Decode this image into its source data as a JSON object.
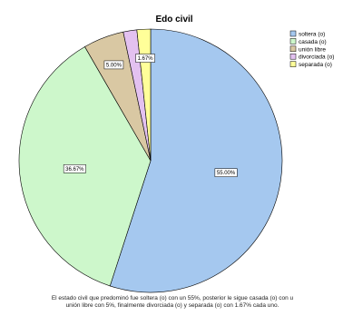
{
  "chart_data": {
    "type": "pie",
    "title": "Edo civil",
    "categories": [
      "soltera (o)",
      "casada (o)",
      "unión libre",
      "divorciada (o)",
      "separada (o)"
    ],
    "values": [
      55.0,
      36.67,
      5.0,
      1.67,
      1.67
    ],
    "data_labels": [
      "55.00%",
      "36.67%",
      "5.00%",
      "",
      "1.67%"
    ],
    "colors": [
      "#a5c8ef",
      "#cdf7cb",
      "#d9c8a3",
      "#e3c1f0",
      "#ffff99"
    ],
    "legend_position": "top-right",
    "start_angle_deg": 0,
    "direction": "clockwise"
  },
  "caption": {
    "line1": "El estado civil que predominó fue soltera (o) con un 55%, posterior le sigue casada (o) con u",
    "line2": "unión libre con 5%, finalmente divorciada (o) y separada (o) con 1.67% cada uno."
  }
}
